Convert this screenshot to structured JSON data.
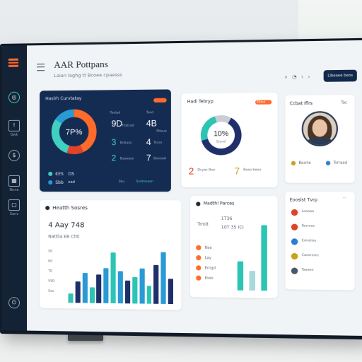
{
  "header": {
    "title": "AAR Pottpans",
    "subtitle": "Laian laghg tt Bcoee cpaesss",
    "action_button": "Llbeaee beos"
  },
  "sidebar": {
    "items": [
      {
        "icon": "circle-icon",
        "label": ""
      },
      {
        "icon": "warning-icon",
        "label": "Gwk"
      },
      {
        "icon": "dollar-icon",
        "label": ""
      },
      {
        "icon": "grid-icon",
        "label": "Nnne"
      },
      {
        "icon": "box-icon",
        "label": "Sanv"
      },
      {
        "icon": "power-icon",
        "label": ""
      }
    ]
  },
  "overview_card": {
    "title": "Haslrh Curvtatay",
    "badge_color": "#ff6b2b",
    "donut_center": "7P%",
    "col1_header": "Toolad",
    "col2_header": "Tosd",
    "stats": [
      {
        "value": "9D",
        "sub": "Ftatrad"
      },
      {
        "value": "4B",
        "sub": "Ptlaue"
      },
      {
        "value": "3",
        "sub": "Bcbaas"
      },
      {
        "value": "4",
        "sub": "Tsces"
      },
      {
        "value": "2",
        "sub": "Bsaaasa"
      },
      {
        "value": "7",
        "sub": "Bsseaal"
      }
    ],
    "footer_rows": [
      {
        "label": "€ES",
        "value": "DS"
      },
      {
        "label": "Sbb",
        "value": "ead"
      }
    ],
    "footer_right": "Sku",
    "footer_link": "Ssntneaen"
  },
  "donut_card": {
    "title": "Hadi Tebryp",
    "tag": "ESlnd",
    "center_value": "10%",
    "center_sub": "Ssyuel",
    "legend": [
      {
        "value": "2",
        "label": "Dcyas Beo"
      },
      {
        "value": "7",
        "label": "Beeo beoe"
      }
    ]
  },
  "profile_card": {
    "title": "Ccbat Iflrs",
    "tag": "Tac",
    "list": [
      {
        "label": "Bosrte"
      },
      {
        "label": "Tsrraad"
      }
    ]
  },
  "scores_card": {
    "title": "Heatth Sosres",
    "big_value": "4 Aay 748",
    "big_sub": "Nattlia EB Chti",
    "y_labels": [
      "S0",
      "K0",
      "T0",
      "VS0",
      "Sso"
    ],
    "bars": [
      {
        "value": 18,
        "color": "#2cc4b4"
      },
      {
        "value": 42,
        "color": "#1f2f69"
      },
      {
        "value": 58,
        "color": "#2a9ad4"
      },
      {
        "value": 30,
        "color": "#2cc4b4"
      },
      {
        "value": 55,
        "color": "#1f2f69"
      },
      {
        "value": 68,
        "color": "#2a9ad4"
      },
      {
        "value": 98,
        "color": "#2cc4b4"
      },
      {
        "value": 62,
        "color": "#2a9ad4"
      },
      {
        "value": 45,
        "color": "#1f2f69"
      },
      {
        "value": 52,
        "color": "#2cc4b4"
      },
      {
        "value": 68,
        "color": "#2a9ad4"
      },
      {
        "value": 35,
        "color": "#2cc4b4"
      },
      {
        "value": 75,
        "color": "#1f2f69"
      },
      {
        "value": 100,
        "color": "#2a9ad4"
      },
      {
        "value": 48,
        "color": "#1f2f69"
      }
    ]
  },
  "factors_card": {
    "title": "Madthl Parces",
    "value1": "Trmlt",
    "value2": "1T36",
    "value3": "10T 35 ICI",
    "rows": [
      {
        "label": "Nse",
        "color": "#ff6b2b"
      },
      {
        "label": "Lay",
        "color": "#ff6b2b"
      },
      {
        "label": "Enrgd",
        "color": "#ff6b2b"
      },
      {
        "label": "Esso",
        "color": "#ff6b2b"
      }
    ],
    "bars": [
      {
        "value": 45,
        "color": "#2cc4b4"
      },
      {
        "value": 30,
        "color": "#a8d9dc"
      },
      {
        "value": 100,
        "color": "#2cc4b4"
      }
    ]
  },
  "activity_card": {
    "title": "Eooslst Tvrp",
    "items": [
      {
        "label": "Loeoaa",
        "color": "#e0432a"
      },
      {
        "label": "Rerrcee",
        "color": "#e0432a"
      },
      {
        "label": "Ermolise",
        "color": "#2a7fd4"
      },
      {
        "label": "Caeorsscc",
        "color": "#c7a21a"
      },
      {
        "label": "Taeaee",
        "color": "#4a5868"
      }
    ]
  }
}
